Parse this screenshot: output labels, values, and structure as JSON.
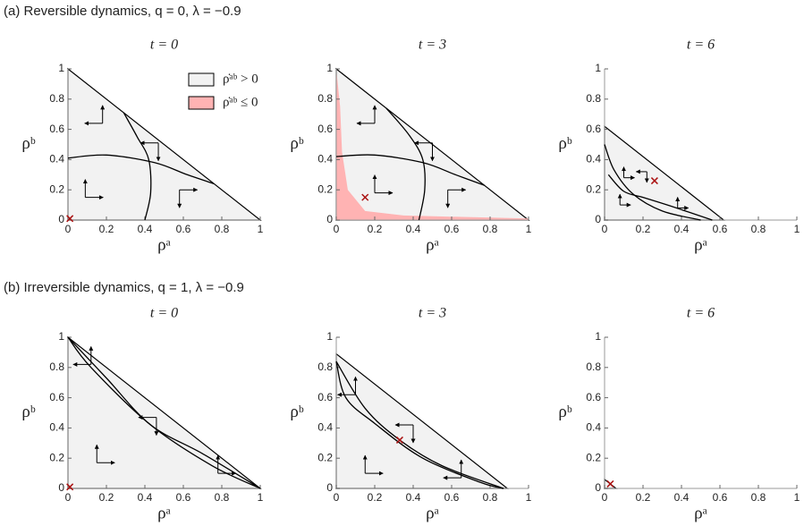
{
  "captions": [
    "(a) Reversible dynamics, q = 0, λ = −0.9",
    "(b) Irreversible dynamics, q = 1, λ = −0.9"
  ],
  "chart_data": [
    {
      "type": "phase",
      "title": "t = 0",
      "xlabel": "ρᵃ",
      "ylabel": "ρᵇ",
      "xlim": [
        0,
        1
      ],
      "ylim": [
        0,
        1
      ],
      "xticks": [
        0,
        0.2,
        0.4,
        0.6,
        0.8,
        1
      ],
      "yticks": [
        0,
        0.2,
        0.4,
        0.6,
        0.8,
        1
      ],
      "extent": 1,
      "fill_color": "#f2f2f2",
      "legend": [
        {
          "name": "ρ̇ᵃᵇ > 0",
          "color": "#f2f2f2"
        },
        {
          "name": "ρ̇ᵃᵇ ≤ 0",
          "color": "#ffb3b3"
        }
      ],
      "legend_position": "upper right",
      "curves": [
        {
          "x": [
            0.4,
            0.43,
            0.42,
            0.36,
            0.29
          ],
          "y": [
            0,
            0.18,
            0.4,
            0.55,
            0.71
          ]
        },
        {
          "x": [
            0,
            0.2,
            0.45,
            0.62,
            0.76
          ],
          "y": [
            0.41,
            0.43,
            0.38,
            0.3,
            0.24
          ]
        }
      ],
      "arrows": [
        {
          "x": 0.18,
          "y": 0.64,
          "h": -1,
          "v": 1
        },
        {
          "x": 0.47,
          "y": 0.51,
          "h": -1,
          "v": -1
        },
        {
          "x": 0.09,
          "y": 0.15,
          "h": 1,
          "v": 1
        },
        {
          "x": 0.58,
          "y": 0.2,
          "h": 1,
          "v": -1
        }
      ],
      "marker": {
        "x": 0.01,
        "y": 0.01,
        "color": "#aa1111"
      }
    },
    {
      "type": "phase",
      "title": "t = 3",
      "xlabel": "ρᵃ",
      "ylabel": "ρᵇ",
      "xlim": [
        0,
        1
      ],
      "ylim": [
        0,
        1
      ],
      "xticks": [
        0,
        0.2,
        0.4,
        0.6,
        0.8,
        1
      ],
      "yticks": [
        0,
        0.2,
        0.4,
        0.6,
        0.8,
        1
      ],
      "extent": 1,
      "fill_color": "#f2f2f2",
      "negative_region": {
        "color": "#ffb3b3",
        "x": [
          0,
          0.02,
          0.03,
          0.06,
          0.15,
          0.35,
          1,
          1,
          0
        ],
        "y": [
          1,
          0.75,
          0.45,
          0.2,
          0.06,
          0.03,
          0.01,
          0,
          0
        ]
      },
      "curves": [
        {
          "x": [
            0.43,
            0.46,
            0.45,
            0.38,
            0.26
          ],
          "y": [
            0,
            0.2,
            0.4,
            0.56,
            0.74
          ]
        },
        {
          "x": [
            0,
            0.2,
            0.45,
            0.62,
            0.77
          ],
          "y": [
            0.42,
            0.43,
            0.38,
            0.3,
            0.23
          ]
        }
      ],
      "arrows": [
        {
          "x": 0.2,
          "y": 0.64,
          "h": -1,
          "v": 1
        },
        {
          "x": 0.5,
          "y": 0.51,
          "h": -1,
          "v": -1
        },
        {
          "x": 0.2,
          "y": 0.18,
          "h": 1,
          "v": 1
        },
        {
          "x": 0.58,
          "y": 0.2,
          "h": 1,
          "v": -1
        }
      ],
      "marker": {
        "x": 0.15,
        "y": 0.15,
        "color": "#aa1111"
      }
    },
    {
      "type": "phase",
      "title": "t = 6",
      "xlabel": "ρᵃ",
      "ylabel": "ρᵇ",
      "xlim": [
        0,
        1
      ],
      "ylim": [
        0,
        1
      ],
      "xticks": [
        0,
        0.2,
        0.4,
        0.6,
        0.8,
        1
      ],
      "yticks": [
        0,
        0.2,
        0.4,
        0.6,
        0.8,
        1
      ],
      "extent": 0.62,
      "fill_color": "#f2f2f2",
      "curves": [
        {
          "x": [
            0,
            0.05,
            0.15,
            0.3,
            0.5
          ],
          "y": [
            0.5,
            0.33,
            0.17,
            0.06,
            0
          ]
        },
        {
          "x": [
            0.02,
            0.1,
            0.2,
            0.35,
            0.56
          ],
          "y": [
            0.3,
            0.19,
            0.15,
            0.09,
            0
          ]
        }
      ],
      "arrows": [
        {
          "x": 0.1,
          "y": 0.28,
          "h": 1,
          "v": 1
        },
        {
          "x": 0.22,
          "y": 0.32,
          "h": -1,
          "v": -1
        },
        {
          "x": 0.08,
          "y": 0.1,
          "h": 1,
          "v": 1
        },
        {
          "x": 0.38,
          "y": 0.08,
          "h": 1,
          "v": 1
        }
      ],
      "marker": {
        "x": 0.26,
        "y": 0.26,
        "color": "#aa1111"
      }
    },
    {
      "type": "phase",
      "title": "t = 0",
      "xlabel": "ρᵃ",
      "ylabel": "ρᵇ",
      "xlim": [
        0,
        1
      ],
      "ylim": [
        0,
        1
      ],
      "xticks": [
        0,
        0.2,
        0.4,
        0.6,
        0.8,
        1
      ],
      "yticks": [
        0,
        0.2,
        0.4,
        0.6,
        0.8,
        1
      ],
      "extent": 1,
      "fill_color": "#f2f2f2",
      "curves": [
        {
          "x": [
            0,
            0.12,
            0.43,
            0.75,
            1
          ],
          "y": [
            1,
            0.8,
            0.42,
            0.15,
            0
          ]
        },
        {
          "x": [
            0,
            0.2,
            0.43,
            0.7,
            1
          ],
          "y": [
            1,
            0.73,
            0.42,
            0.23,
            0
          ]
        }
      ],
      "arrows": [
        {
          "x": 0.12,
          "y": 0.82,
          "h": -1,
          "v": 1
        },
        {
          "x": 0.46,
          "y": 0.47,
          "h": -1,
          "v": -1
        },
        {
          "x": 0.15,
          "y": 0.17,
          "h": 1,
          "v": 1
        },
        {
          "x": 0.78,
          "y": 0.1,
          "h": 1,
          "v": 1
        }
      ],
      "marker": {
        "x": 0.01,
        "y": 0.01,
        "color": "#aa1111"
      }
    },
    {
      "type": "phase",
      "title": "t = 3",
      "xlabel": "ρᵃ",
      "ylabel": "ρᵇ",
      "xlim": [
        0,
        1
      ],
      "ylim": [
        0,
        1
      ],
      "xticks": [
        0,
        0.2,
        0.4,
        0.6,
        0.8,
        1
      ],
      "yticks": [
        0,
        0.2,
        0.4,
        0.6,
        0.8,
        1
      ],
      "extent": 0.89,
      "fill_color": "#f2f2f2",
      "curves": [
        {
          "x": [
            0,
            0.05,
            0.2,
            0.45,
            0.75,
            0.87
          ],
          "y": [
            0.84,
            0.6,
            0.43,
            0.2,
            0.04,
            0
          ]
        },
        {
          "x": [
            0,
            0.15,
            0.33,
            0.55,
            0.87
          ],
          "y": [
            0.84,
            0.53,
            0.32,
            0.15,
            0
          ]
        }
      ],
      "arrows": [
        {
          "x": 0.1,
          "y": 0.62,
          "h": -1,
          "v": 1
        },
        {
          "x": 0.4,
          "y": 0.42,
          "h": -1,
          "v": -1
        },
        {
          "x": 0.15,
          "y": 0.1,
          "h": 1,
          "v": 1
        },
        {
          "x": 0.65,
          "y": 0.07,
          "h": -1,
          "v": 1
        }
      ],
      "marker": {
        "x": 0.33,
        "y": 0.32,
        "color": "#aa1111"
      }
    },
    {
      "type": "phase",
      "title": "t = 6",
      "xlabel": "ρᵃ",
      "ylabel": "ρᵇ",
      "xlim": [
        0,
        1
      ],
      "ylim": [
        0,
        1
      ],
      "xticks": [
        0,
        0.2,
        0.4,
        0.6,
        0.8,
        1
      ],
      "yticks": [
        0,
        0.2,
        0.4,
        0.6,
        0.8,
        1
      ],
      "extent": 0.06,
      "fill_color": "#f2f2f2",
      "marker": {
        "x": 0.03,
        "y": 0.03,
        "color": "#aa1111"
      }
    }
  ]
}
